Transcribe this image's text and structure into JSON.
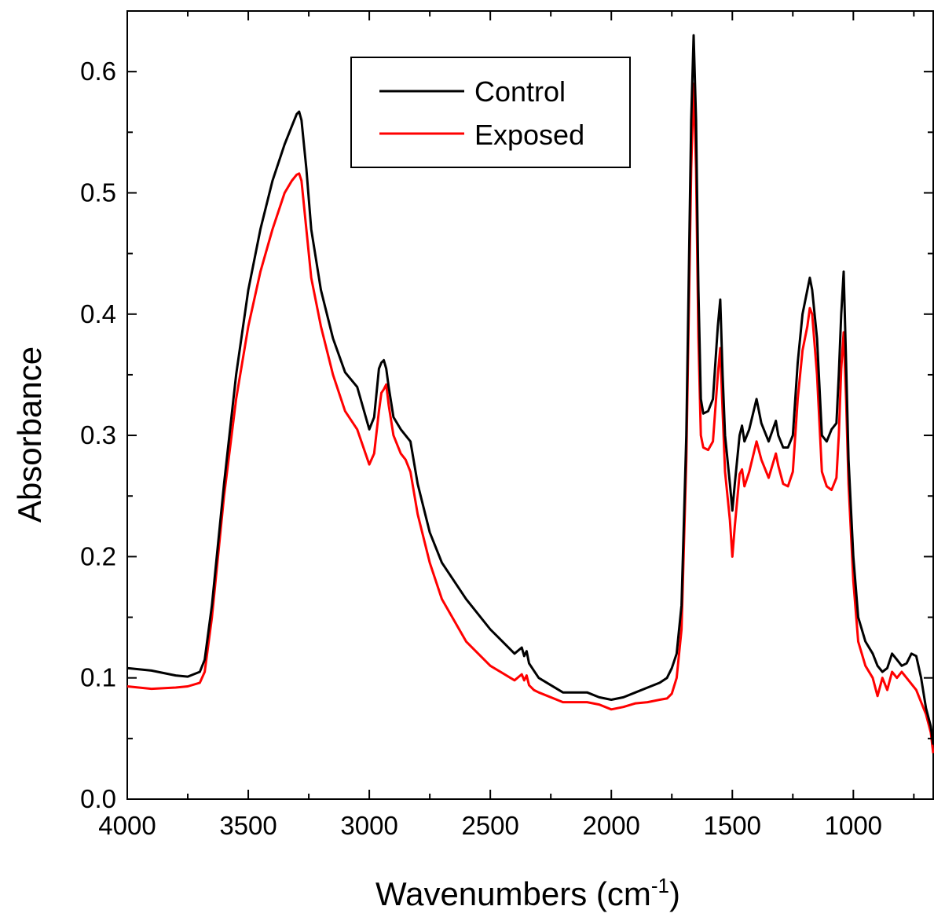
{
  "chart_data": {
    "type": "line",
    "xlabel": "Wavenumbers (cm",
    "xlabel_superscript": "-1",
    "xlabel_suffix": ")",
    "ylabel": "Absorbance",
    "xlim": [
      4000,
      670
    ],
    "ylim": [
      0.0,
      0.65
    ],
    "x_reversed": true,
    "grid": false,
    "legend_position": "top-center",
    "x_ticks": [
      "4000",
      "3500",
      "3000",
      "2500",
      "2000",
      "1500",
      "1000"
    ],
    "x_tick_values": [
      4000,
      3500,
      3000,
      2500,
      2000,
      1500,
      1000
    ],
    "y_ticks": [
      "0.0",
      "0.1",
      "0.2",
      "0.3",
      "0.4",
      "0.5",
      "0.6"
    ],
    "y_tick_values": [
      0.0,
      0.1,
      0.2,
      0.3,
      0.4,
      0.5,
      0.6
    ],
    "series": [
      {
        "name": "Control",
        "color": "#000000",
        "x": [
          4000,
          3900,
          3800,
          3750,
          3700,
          3680,
          3650,
          3600,
          3550,
          3500,
          3450,
          3400,
          3350,
          3320,
          3300,
          3290,
          3280,
          3260,
          3240,
          3200,
          3150,
          3100,
          3050,
          3000,
          2980,
          2960,
          2950,
          2940,
          2930,
          2920,
          2900,
          2870,
          2850,
          2830,
          2800,
          2750,
          2700,
          2600,
          2500,
          2400,
          2370,
          2360,
          2350,
          2340,
          2320,
          2300,
          2200,
          2100,
          2050,
          2000,
          1950,
          1900,
          1850,
          1800,
          1770,
          1750,
          1730,
          1710,
          1690,
          1670,
          1660,
          1650,
          1640,
          1630,
          1620,
          1600,
          1580,
          1560,
          1550,
          1540,
          1530,
          1510,
          1500,
          1490,
          1470,
          1460,
          1450,
          1430,
          1400,
          1380,
          1350,
          1320,
          1310,
          1290,
          1270,
          1250,
          1230,
          1210,
          1190,
          1180,
          1170,
          1150,
          1130,
          1110,
          1090,
          1070,
          1060,
          1050,
          1040,
          1030,
          1020,
          1000,
          980,
          950,
          920,
          900,
          880,
          860,
          840,
          820,
          800,
          780,
          760,
          740,
          720,
          700,
          680,
          670
        ],
        "y": [
          0.108,
          0.106,
          0.102,
          0.101,
          0.105,
          0.115,
          0.16,
          0.26,
          0.35,
          0.42,
          0.47,
          0.51,
          0.54,
          0.555,
          0.565,
          0.567,
          0.56,
          0.52,
          0.47,
          0.42,
          0.38,
          0.352,
          0.34,
          0.305,
          0.315,
          0.355,
          0.36,
          0.362,
          0.355,
          0.34,
          0.315,
          0.305,
          0.3,
          0.295,
          0.26,
          0.22,
          0.195,
          0.165,
          0.14,
          0.12,
          0.125,
          0.118,
          0.122,
          0.112,
          0.106,
          0.1,
          0.088,
          0.088,
          0.084,
          0.082,
          0.084,
          0.088,
          0.092,
          0.096,
          0.1,
          0.108,
          0.12,
          0.16,
          0.3,
          0.56,
          0.63,
          0.56,
          0.42,
          0.33,
          0.318,
          0.32,
          0.33,
          0.39,
          0.412,
          0.35,
          0.3,
          0.26,
          0.238,
          0.26,
          0.3,
          0.308,
          0.295,
          0.305,
          0.33,
          0.31,
          0.295,
          0.312,
          0.3,
          0.29,
          0.29,
          0.3,
          0.36,
          0.4,
          0.42,
          0.43,
          0.42,
          0.38,
          0.3,
          0.295,
          0.305,
          0.31,
          0.35,
          0.4,
          0.435,
          0.36,
          0.28,
          0.2,
          0.15,
          0.13,
          0.12,
          0.11,
          0.105,
          0.108,
          0.12,
          0.115,
          0.11,
          0.112,
          0.12,
          0.118,
          0.1,
          0.075,
          0.06,
          0.045
        ],
        "peak_label": ""
      },
      {
        "name": "Exposed",
        "color": "#ff0000",
        "x": [
          4000,
          3900,
          3800,
          3750,
          3700,
          3680,
          3650,
          3600,
          3550,
          3500,
          3450,
          3400,
          3350,
          3320,
          3300,
          3290,
          3280,
          3260,
          3240,
          3200,
          3150,
          3100,
          3050,
          3000,
          2980,
          2960,
          2950,
          2940,
          2930,
          2920,
          2900,
          2870,
          2850,
          2830,
          2800,
          2750,
          2700,
          2600,
          2500,
          2400,
          2370,
          2360,
          2350,
          2340,
          2320,
          2300,
          2200,
          2100,
          2050,
          2000,
          1950,
          1900,
          1850,
          1800,
          1770,
          1750,
          1730,
          1710,
          1690,
          1670,
          1660,
          1650,
          1640,
          1630,
          1620,
          1600,
          1580,
          1560,
          1550,
          1540,
          1530,
          1510,
          1500,
          1490,
          1470,
          1460,
          1450,
          1430,
          1400,
          1380,
          1350,
          1320,
          1310,
          1290,
          1270,
          1250,
          1230,
          1210,
          1190,
          1180,
          1170,
          1150,
          1130,
          1110,
          1090,
          1070,
          1060,
          1050,
          1040,
          1030,
          1020,
          1000,
          980,
          950,
          920,
          900,
          880,
          860,
          840,
          820,
          800,
          780,
          760,
          740,
          720,
          700,
          680,
          670
        ],
        "y": [
          0.093,
          0.091,
          0.092,
          0.093,
          0.096,
          0.105,
          0.15,
          0.25,
          0.33,
          0.39,
          0.435,
          0.47,
          0.5,
          0.51,
          0.515,
          0.516,
          0.51,
          0.47,
          0.43,
          0.39,
          0.35,
          0.32,
          0.305,
          0.276,
          0.285,
          0.32,
          0.335,
          0.338,
          0.342,
          0.325,
          0.3,
          0.285,
          0.28,
          0.27,
          0.235,
          0.195,
          0.165,
          0.13,
          0.11,
          0.098,
          0.103,
          0.098,
          0.102,
          0.094,
          0.09,
          0.088,
          0.08,
          0.08,
          0.078,
          0.074,
          0.076,
          0.079,
          0.08,
          0.082,
          0.083,
          0.087,
          0.1,
          0.14,
          0.28,
          0.52,
          0.59,
          0.52,
          0.38,
          0.3,
          0.29,
          0.288,
          0.295,
          0.35,
          0.372,
          0.32,
          0.27,
          0.23,
          0.2,
          0.225,
          0.268,
          0.272,
          0.258,
          0.27,
          0.295,
          0.28,
          0.265,
          0.285,
          0.275,
          0.26,
          0.258,
          0.27,
          0.33,
          0.37,
          0.39,
          0.405,
          0.4,
          0.35,
          0.27,
          0.258,
          0.255,
          0.265,
          0.3,
          0.355,
          0.385,
          0.33,
          0.26,
          0.18,
          0.13,
          0.11,
          0.1,
          0.085,
          0.1,
          0.09,
          0.105,
          0.1,
          0.105,
          0.1,
          0.095,
          0.09,
          0.08,
          0.07,
          0.055,
          0.038
        ]
      }
    ]
  }
}
